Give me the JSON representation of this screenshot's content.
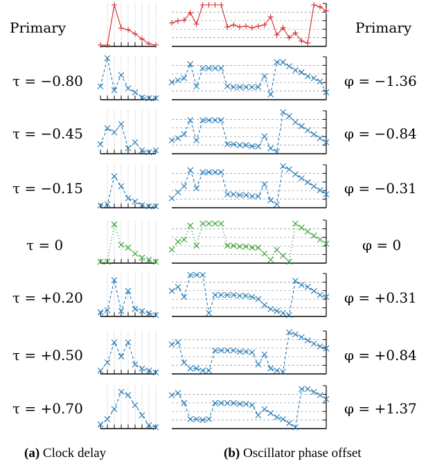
{
  "left_labels": [
    "Primary",
    "τ = −0.80",
    "τ = −0.45",
    "τ = −0.15",
    "τ = 0",
    "τ = +0.20",
    "τ = +0.50",
    "τ = +0.70"
  ],
  "right_labels": [
    "Primary",
    "φ = −1.36",
    "φ = −0.84",
    "φ = −0.31",
    "φ = 0",
    "φ = +0.31",
    "φ = +0.84",
    "φ = +1.37"
  ],
  "captions": {
    "a_tag": "(a)",
    "a_text": "Clock delay",
    "b_tag": "(b)",
    "b_text": "Oscillator phase offset"
  },
  "colors": {
    "primary": "#d62728",
    "variant": "#1f77b4",
    "reference": "#2ca02c"
  },
  "chart_data": [
    {
      "type": "line",
      "panel": "(a) Clock delay",
      "ylim": [
        0,
        1
      ],
      "grid": "vertical dotted",
      "series": [
        {
          "label": "Primary",
          "marker": "+",
          "color": "#d62728",
          "style": "solid",
          "x": [
            0,
            1,
            2,
            3,
            4,
            5,
            6,
            7,
            8
          ],
          "values": [
            0.0,
            0.0,
            1.0,
            0.42,
            0.38,
            0.28,
            0.15,
            0.03,
            0.0
          ]
        },
        {
          "label": "τ = −0.80",
          "marker": "x",
          "color": "#1f77b4",
          "style": "dashed",
          "x": [
            0,
            1,
            2,
            3,
            4,
            5,
            6,
            7,
            8
          ],
          "values": [
            0.3,
            1.0,
            0.2,
            0.58,
            0.25,
            0.15,
            0.02,
            0.0,
            0.0
          ]
        },
        {
          "label": "τ = −0.45",
          "marker": "x",
          "color": "#1f77b4",
          "style": "dashed",
          "x": [
            0,
            1,
            2,
            3,
            4,
            5,
            6,
            7,
            8
          ],
          "values": [
            0.2,
            0.6,
            0.5,
            0.7,
            0.1,
            0.25,
            0.05,
            0.0,
            0.05
          ]
        },
        {
          "label": "τ = −0.15",
          "marker": "x",
          "color": "#1f77b4",
          "style": "dashed",
          "x": [
            0,
            1,
            2,
            3,
            4,
            5,
            6,
            7,
            8
          ],
          "values": [
            0.02,
            0.05,
            0.75,
            0.5,
            0.2,
            0.12,
            0.03,
            0.0,
            0.0
          ]
        },
        {
          "label": "τ = 0",
          "marker": "x",
          "color": "#2ca02c",
          "style": "dotted",
          "x": [
            0,
            1,
            2,
            3,
            4,
            5,
            6,
            7,
            8
          ],
          "values": [
            0.0,
            0.0,
            0.93,
            0.42,
            0.35,
            0.2,
            0.1,
            0.05,
            0.0
          ]
        },
        {
          "label": "τ = +0.20",
          "marker": "x",
          "color": "#1f77b4",
          "style": "dashed",
          "x": [
            0,
            1,
            2,
            3,
            4,
            5,
            6,
            7,
            8
          ],
          "values": [
            0.07,
            0.12,
            0.87,
            0.1,
            0.6,
            0.15,
            0.1,
            0.05,
            0.0
          ]
        },
        {
          "label": "τ = +0.50",
          "marker": "x",
          "color": "#1f77b4",
          "style": "dashed",
          "x": [
            0,
            1,
            2,
            3,
            4,
            5,
            6,
            7,
            8
          ],
          "values": [
            0.05,
            0.25,
            0.75,
            0.4,
            0.75,
            0.2,
            0.1,
            0.05,
            0.0
          ]
        },
        {
          "label": "τ = +0.70",
          "marker": "x",
          "color": "#1f77b4",
          "style": "dashed",
          "x": [
            0,
            1,
            2,
            3,
            4,
            5,
            6,
            7,
            8
          ],
          "values": [
            0.07,
            0.2,
            0.45,
            0.88,
            0.8,
            0.55,
            0.3,
            0.05,
            0.0
          ]
        }
      ]
    },
    {
      "type": "line",
      "panel": "(b) Oscillator phase offset",
      "ylim": [
        0,
        1
      ],
      "grid": "horizontal dashed",
      "series": [
        {
          "label": "Primary",
          "marker": "+",
          "color": "#d62728",
          "style": "solid",
          "x": [
            0,
            1,
            2,
            3,
            4,
            5,
            6,
            7,
            8,
            9,
            10,
            11,
            12,
            13,
            14,
            15,
            16,
            17,
            18,
            19,
            20,
            21,
            22,
            23,
            24,
            25
          ],
          "values": [
            0.55,
            0.6,
            0.62,
            0.8,
            0.52,
            1.0,
            1.0,
            1.0,
            1.0,
            0.45,
            0.5,
            0.45,
            0.47,
            0.43,
            0.47,
            0.5,
            0.7,
            0.25,
            0.43,
            0.18,
            0.3,
            0.1,
            0.05,
            1.0,
            0.95,
            0.85
          ]
        },
        {
          "label": "φ = −1.36",
          "marker": "x",
          "color": "#1f77b4",
          "style": "dashed",
          "x": [
            0,
            1,
            2,
            3,
            4,
            5,
            6,
            7,
            8,
            9,
            10,
            11,
            12,
            13,
            14,
            15,
            16,
            17,
            18,
            19,
            20,
            21,
            22,
            23,
            24,
            25
          ],
          "values": [
            0.4,
            0.45,
            0.5,
            0.85,
            0.3,
            0.75,
            0.75,
            0.75,
            0.75,
            0.3,
            0.28,
            0.28,
            0.28,
            0.28,
            0.28,
            0.55,
            0.1,
            0.9,
            0.9,
            0.8,
            0.7,
            0.65,
            0.55,
            0.5,
            0.42,
            0.15
          ]
        },
        {
          "label": "φ = −0.84",
          "marker": "x",
          "color": "#1f77b4",
          "style": "dashed",
          "x": [
            0,
            1,
            2,
            3,
            4,
            5,
            6,
            7,
            8,
            9,
            10,
            11,
            12,
            13,
            14,
            15,
            16,
            17,
            18,
            19,
            20,
            21,
            22,
            23,
            24,
            25
          ],
          "values": [
            0.3,
            0.35,
            0.45,
            0.8,
            0.3,
            0.8,
            0.8,
            0.8,
            0.8,
            0.2,
            0.2,
            0.18,
            0.18,
            0.15,
            0.15,
            0.4,
            0.1,
            0.02,
            1.0,
            0.9,
            0.75,
            0.65,
            0.55,
            0.45,
            0.35,
            0.25
          ]
        },
        {
          "label": "φ = −0.31",
          "marker": "x",
          "color": "#1f77b4",
          "style": "dashed",
          "x": [
            0,
            1,
            2,
            3,
            4,
            5,
            6,
            7,
            8,
            9,
            10,
            11,
            12,
            13,
            14,
            15,
            16,
            17,
            18,
            19,
            20,
            21,
            22,
            23,
            24,
            25
          ],
          "values": [
            0.2,
            0.35,
            0.5,
            0.9,
            0.45,
            0.85,
            0.85,
            0.85,
            0.85,
            0.3,
            0.3,
            0.28,
            0.28,
            0.25,
            0.25,
            0.55,
            0.15,
            0.05,
            1.0,
            0.92,
            0.8,
            0.7,
            0.6,
            0.5,
            0.4,
            0.3
          ]
        },
        {
          "label": "φ = 0",
          "marker": "x",
          "color": "#2ca02c",
          "style": "dotted",
          "x": [
            0,
            1,
            2,
            3,
            4,
            5,
            6,
            7,
            8,
            9,
            10,
            11,
            12,
            13,
            14,
            15,
            16,
            17,
            18,
            19,
            20,
            21,
            22,
            23,
            24,
            25
          ],
          "values": [
            0.3,
            0.5,
            0.55,
            0.9,
            0.4,
            0.95,
            0.95,
            0.95,
            0.95,
            0.4,
            0.4,
            0.38,
            0.38,
            0.35,
            0.35,
            0.2,
            0.05,
            0.3,
            0.15,
            0.0,
            0.95,
            0.85,
            0.75,
            0.65,
            0.55,
            0.45
          ]
        },
        {
          "label": "φ = +0.31",
          "marker": "x",
          "color": "#1f77b4",
          "style": "dashed",
          "x": [
            0,
            1,
            2,
            3,
            4,
            5,
            6,
            7,
            8,
            9,
            10,
            11,
            12,
            13,
            14,
            15,
            16,
            17,
            18,
            19,
            20,
            21,
            22,
            23,
            24,
            25
          ],
          "values": [
            0.6,
            0.7,
            0.45,
            1.0,
            1.0,
            1.0,
            0.05,
            0.5,
            0.5,
            0.5,
            0.5,
            0.48,
            0.48,
            0.45,
            0.4,
            0.25,
            0.15,
            0.1,
            0.05,
            0.0,
            0.85,
            0.75,
            0.7,
            0.6,
            0.5,
            0.45
          ]
        },
        {
          "label": "φ = +0.84",
          "marker": "x",
          "color": "#1f77b4",
          "style": "dashed",
          "x": [
            0,
            1,
            2,
            3,
            4,
            5,
            6,
            7,
            8,
            9,
            10,
            11,
            12,
            13,
            14,
            15,
            16,
            17,
            18,
            19,
            20,
            21,
            22,
            23,
            24,
            25
          ],
          "values": [
            0.7,
            0.75,
            0.25,
            0.1,
            0.1,
            0.05,
            0.05,
            0.55,
            0.55,
            0.55,
            0.55,
            0.52,
            0.52,
            0.5,
            0.2,
            0.45,
            0.1,
            0.05,
            0.02,
            1.0,
            0.95,
            0.88,
            0.8,
            0.72,
            0.65,
            0.6
          ]
        },
        {
          "label": "φ = +1.37",
          "marker": "x",
          "color": "#1f77b4",
          "style": "dashed",
          "x": [
            0,
            1,
            2,
            3,
            4,
            5,
            6,
            7,
            8,
            9,
            10,
            11,
            12,
            13,
            14,
            15,
            16,
            17,
            18,
            19,
            20,
            21,
            22,
            23,
            24,
            25
          ],
          "values": [
            0.8,
            0.85,
            0.6,
            0.2,
            0.2,
            0.18,
            0.2,
            0.6,
            0.6,
            0.6,
            0.6,
            0.58,
            0.58,
            0.55,
            0.3,
            0.45,
            0.35,
            0.25,
            0.2,
            0.1,
            0.0,
            0.95,
            0.95,
            0.88,
            0.8,
            0.7
          ]
        }
      ]
    }
  ]
}
